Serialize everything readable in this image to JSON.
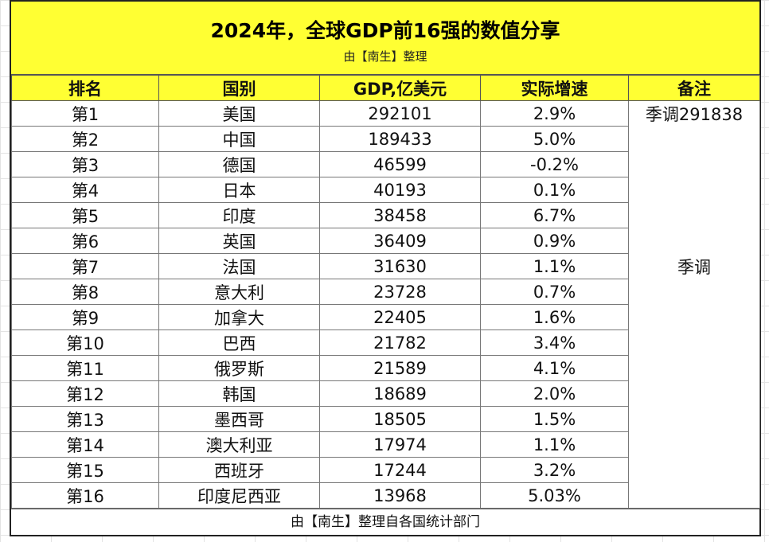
{
  "title": "2024年，全球GDP前16强的数值分享",
  "subtitle": "由【南生】整理",
  "headers": [
    "排名",
    "国别",
    "GDP,亿美元",
    "实际增速",
    "备注"
  ],
  "rows": [
    {
      "rank": "第1",
      "country": "美国",
      "gdp": "292101",
      "growth": "2.9%",
      "note": "季调291838"
    },
    {
      "rank": "第2",
      "country": "中国",
      "gdp": "189433",
      "growth": "5.0%",
      "note": ""
    },
    {
      "rank": "第3",
      "country": "德国",
      "gdp": "46599",
      "growth": "-0.2%",
      "note": ""
    },
    {
      "rank": "第4",
      "country": "日本",
      "gdp": "40193",
      "growth": "0.1%",
      "note": ""
    },
    {
      "rank": "第5",
      "country": "印度",
      "gdp": "38458",
      "growth": "6.7%",
      "note": ""
    },
    {
      "rank": "第6",
      "country": "英国",
      "gdp": "36409",
      "growth": "0.9%",
      "note": ""
    },
    {
      "rank": "第7",
      "country": "法国",
      "gdp": "31630",
      "growth": "1.1%",
      "note": "季调"
    },
    {
      "rank": "第8",
      "country": "意大利",
      "gdp": "23728",
      "growth": "0.7%",
      "note": ""
    },
    {
      "rank": "第9",
      "country": "加拿大",
      "gdp": "22405",
      "growth": "1.6%",
      "note": ""
    },
    {
      "rank": "第10",
      "country": "巴西",
      "gdp": "21782",
      "growth": "3.4%",
      "note": ""
    },
    {
      "rank": "第11",
      "country": "俄罗斯",
      "gdp": "21589",
      "growth": "4.1%",
      "note": ""
    },
    {
      "rank": "第12",
      "country": "韩国",
      "gdp": "18689",
      "growth": "2.0%",
      "note": ""
    },
    {
      "rank": "第13",
      "country": "墨西哥",
      "gdp": "18505",
      "growth": "1.5%",
      "note": ""
    },
    {
      "rank": "第14",
      "country": "澳大利亚",
      "gdp": "17974",
      "growth": "1.1%",
      "note": ""
    },
    {
      "rank": "第15",
      "country": "西班牙",
      "gdp": "17244",
      "growth": "3.2%",
      "note": ""
    },
    {
      "rank": "第16",
      "country": "印度尼西亚",
      "gdp": "13968",
      "growth": "5.03%",
      "note": ""
    }
  ],
  "footer": "由【南生】整理自各国统计部门",
  "colors": {
    "header_fill": "#ffff33",
    "grid_line": "#e3e3e3",
    "border": "#222222"
  }
}
